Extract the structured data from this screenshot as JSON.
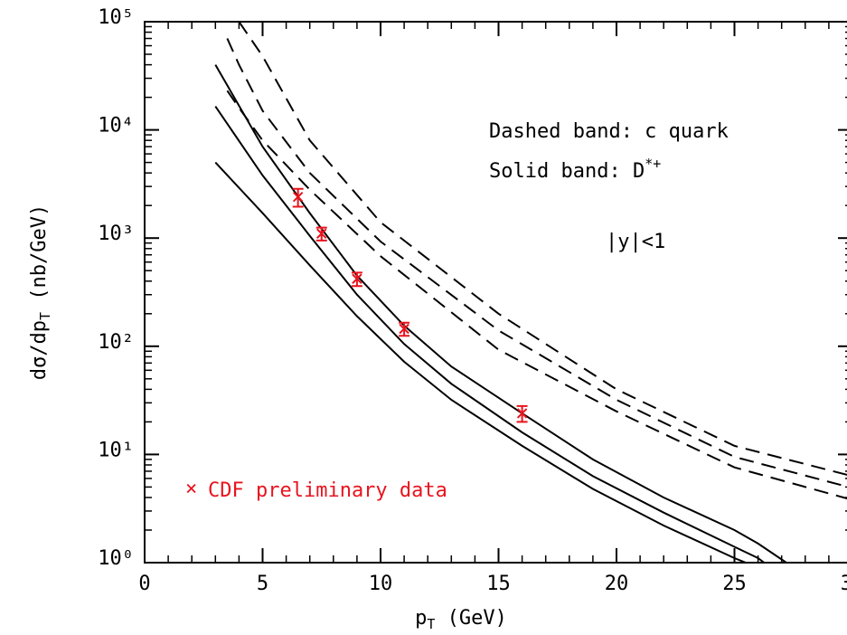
{
  "chart_data": {
    "type": "line",
    "log_y": true,
    "x_label": "p",
    "x_label_sub": "T",
    "x_label_rest": " (GeV)",
    "y_label": "dσ/dp",
    "y_label_sub": "T",
    "y_label_rest": " (nb/GeV)",
    "xlim": [
      0,
      30
    ],
    "ylim": [
      1,
      100000
    ],
    "xticks": [
      0,
      5,
      10,
      15,
      20,
      25,
      30
    ],
    "xminor_ticks": [
      1,
      2,
      3,
      4,
      6,
      7,
      8,
      9,
      11,
      12,
      13,
      14,
      16,
      17,
      18,
      19,
      21,
      22,
      23,
      24,
      26,
      27,
      28,
      29
    ],
    "yticks": [
      {
        "value": 1,
        "label": "10⁰"
      },
      {
        "value": 10,
        "label": "10¹"
      },
      {
        "value": 100,
        "label": "10²"
      },
      {
        "value": 1000,
        "label": "10³"
      },
      {
        "value": 10000,
        "label": "10⁴"
      },
      {
        "value": 100000,
        "label": "10⁵"
      }
    ],
    "yminor_ticks": [
      2,
      3,
      4,
      5,
      6,
      7,
      8,
      9,
      20,
      30,
      40,
      50,
      60,
      70,
      80,
      90,
      200,
      300,
      400,
      500,
      600,
      700,
      800,
      900,
      2000,
      3000,
      4000,
      5000,
      6000,
      7000,
      8000,
      9000,
      20000,
      30000,
      40000,
      50000,
      60000,
      70000,
      80000,
      90000
    ],
    "annotations": [
      "Dashed band: c quark",
      "Solid band: D",
      "*+",
      "|y|<1"
    ],
    "bands": [
      {
        "name": "c quark",
        "style": "dashed",
        "color": "#000000",
        "x": [
          3.5,
          4,
          5,
          7,
          10,
          15,
          20,
          25,
          30
        ],
        "lines": [
          [
            null,
            100000,
            48000,
            8000,
            1400,
            200,
            40,
            12,
            6.3
          ],
          [
            70000,
            40000,
            15000,
            4000,
            930,
            140,
            32,
            9.5,
            4.9
          ],
          [
            23000,
            16000,
            8000,
            2800,
            680,
            93,
            25,
            7.6,
            3.8
          ]
        ]
      },
      {
        "name": "D*+",
        "style": "solid",
        "color": "#000000",
        "x": [
          3,
          5,
          7,
          9,
          11,
          13,
          16,
          19,
          22,
          25,
          26,
          27.2
        ],
        "lines": [
          [
            40000,
            7000,
            1700,
            450,
            155,
            65,
            24,
            9,
            4,
            2,
            1.5,
            1
          ],
          [
            16500,
            3800,
            1050,
            300,
            105,
            45,
            16,
            6.3,
            2.9,
            1.4,
            1.1,
            0.7
          ],
          [
            5000,
            1700,
            560,
            190,
            72,
            32,
            12,
            4.8,
            2.2,
            1.1,
            0.9,
            null
          ]
        ]
      }
    ],
    "data_series": {
      "name": "CDF preliminary data",
      "color": "#e8141e",
      "x": [
        6.5,
        7.5,
        9,
        11,
        16
      ],
      "values": [
        2400,
        1100,
        420,
        145,
        24
      ],
      "errors": [
        450,
        150,
        60,
        20,
        4
      ]
    }
  }
}
